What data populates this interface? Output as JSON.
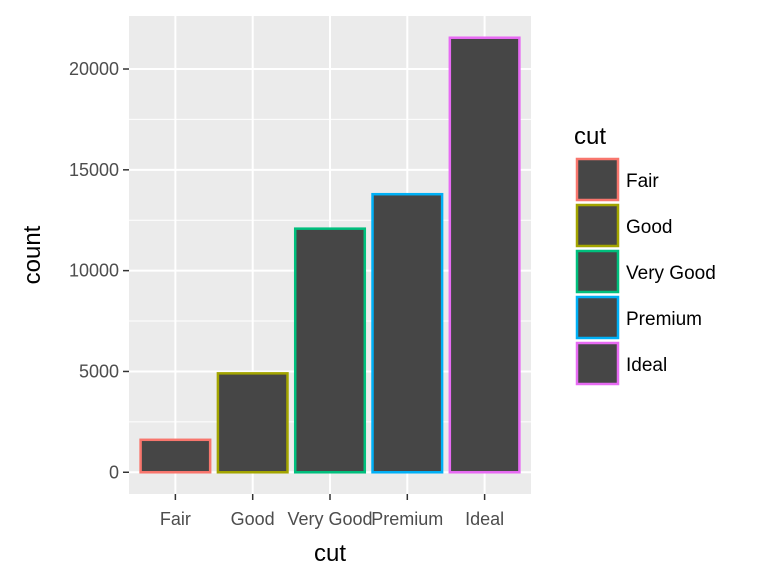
{
  "chart_data": {
    "type": "bar",
    "categories": [
      "Fair",
      "Good",
      "Very Good",
      "Premium",
      "Ideal"
    ],
    "values": [
      1610,
      4906,
      12082,
      13791,
      21551
    ],
    "ylim": [
      -1078,
      22629
    ],
    "yticks": [
      0,
      5000,
      10000,
      15000,
      20000
    ],
    "xlabel": "cut",
    "ylabel": "count",
    "bar_fill": "#464646",
    "outline_colors": [
      "#f8766d",
      "#a3a500",
      "#00bf7d",
      "#00b0f6",
      "#e76bf3"
    ],
    "panel_background": "#ebebeb",
    "grid": true,
    "legend": {
      "title": "cut",
      "position": "right",
      "items": [
        "Fair",
        "Good",
        "Very Good",
        "Premium",
        "Ideal"
      ]
    }
  }
}
